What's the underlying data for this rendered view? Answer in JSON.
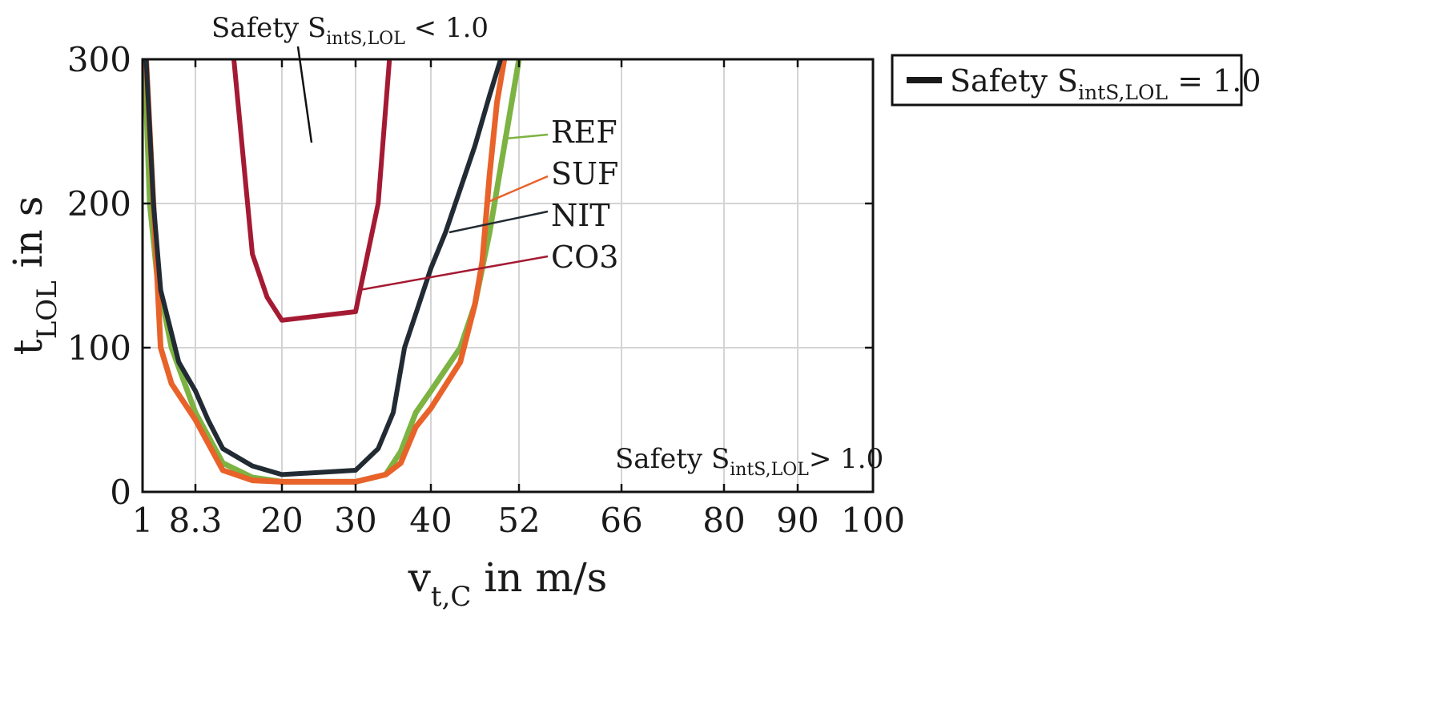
{
  "chart_data": {
    "type": "line",
    "xlabel": {
      "main": "v",
      "sub": "t,C",
      "rest": " in m/s"
    },
    "ylabel": {
      "main": "t",
      "sub": "LOL",
      "rest": " in s"
    },
    "xlim": [
      1,
      100
    ],
    "ylim": [
      0,
      300
    ],
    "xscale": "custom-piecewise",
    "x_ticks": [
      1,
      8.3,
      20,
      30,
      40,
      52,
      66,
      80,
      90,
      100
    ],
    "x_tick_labels": [
      "1",
      "8.3",
      "20",
      "30",
      "40",
      "52",
      "66",
      "80",
      "90",
      "100"
    ],
    "y_ticks": [
      0,
      100,
      200,
      300
    ],
    "y_tick_labels": [
      "0",
      "100",
      "200",
      "300"
    ],
    "grid": true,
    "legend": {
      "placement": "top-right outside",
      "entries": [
        {
          "text": "Safety S",
          "sub": "intS,LOL",
          "rest": " = 1.0",
          "color": "#1a1a1a"
        }
      ]
    },
    "annotations": {
      "unsafe": {
        "text": "Safety S",
        "sub": "intS,LOL",
        "rest": " < 1.0"
      },
      "safe": {
        "text": "Safety S",
        "sub": "intS,LOL",
        "rest": "> 1.0"
      }
    },
    "series": [
      {
        "name": "REF",
        "color": "#7cb342",
        "points": [
          [
            1.3,
            300
          ],
          [
            2.0,
            200
          ],
          [
            3.0,
            150
          ],
          [
            5.0,
            100
          ],
          [
            8.3,
            55
          ],
          [
            12,
            20
          ],
          [
            16,
            10
          ],
          [
            20,
            7
          ],
          [
            30,
            7
          ],
          [
            34,
            12
          ],
          [
            36,
            28
          ],
          [
            38,
            55
          ],
          [
            40,
            70
          ],
          [
            44,
            100
          ],
          [
            46,
            130
          ],
          [
            48,
            180
          ],
          [
            50,
            240
          ],
          [
            52,
            300
          ]
        ]
      },
      {
        "name": "SUF",
        "color": "#e8622a",
        "points": [
          [
            1.5,
            300
          ],
          [
            2.5,
            200
          ],
          [
            3.5,
            100
          ],
          [
            5.0,
            75
          ],
          [
            8.3,
            50
          ],
          [
            12,
            15
          ],
          [
            16,
            8
          ],
          [
            20,
            7
          ],
          [
            30,
            7
          ],
          [
            34,
            12
          ],
          [
            36,
            20
          ],
          [
            38,
            45
          ],
          [
            40,
            58
          ],
          [
            44,
            90
          ],
          [
            46,
            130
          ],
          [
            47,
            160
          ],
          [
            48,
            220
          ],
          [
            49,
            270
          ],
          [
            50,
            300
          ]
        ]
      },
      {
        "name": "NIT",
        "color": "#222b33",
        "points": [
          [
            1.5,
            300
          ],
          [
            2.5,
            200
          ],
          [
            3.5,
            140
          ],
          [
            6,
            90
          ],
          [
            8.3,
            70
          ],
          [
            10,
            50
          ],
          [
            12,
            30
          ],
          [
            16,
            18
          ],
          [
            20,
            12
          ],
          [
            30,
            15
          ],
          [
            33,
            30
          ],
          [
            35,
            55
          ],
          [
            36.5,
            100
          ],
          [
            40,
            155
          ],
          [
            42,
            180
          ],
          [
            44,
            210
          ],
          [
            46,
            240
          ],
          [
            48,
            275
          ],
          [
            49.5,
            300
          ]
        ]
      },
      {
        "name": "CO3",
        "color": "#a51a33",
        "points": [
          [
            13.5,
            300
          ],
          [
            16,
            165
          ],
          [
            18,
            135
          ],
          [
            20,
            119
          ],
          [
            30,
            125
          ],
          [
            33,
            200
          ],
          [
            34.5,
            300
          ]
        ]
      }
    ]
  }
}
